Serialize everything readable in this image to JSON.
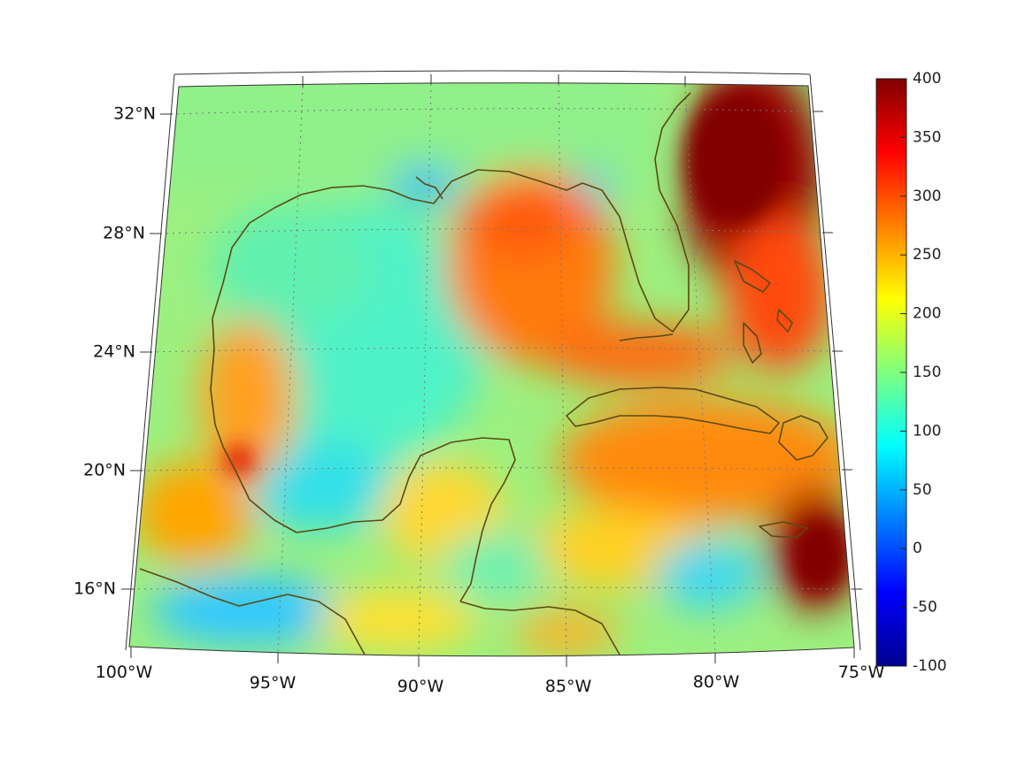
{
  "map": {
    "projection": "conic",
    "lat_labels": [
      "32°N",
      "28°N",
      "24°N",
      "20°N",
      "16°N"
    ],
    "lon_labels": [
      "100°W",
      "95°W",
      "90°W",
      "85°W",
      "80°W",
      "75°W"
    ],
    "lat_range": [
      14,
      33
    ],
    "lon_range": [
      -100,
      -75
    ],
    "grid": true,
    "coastline_color": "#5c4a14"
  },
  "colorbar": {
    "colormap": "jet",
    "ticks": [
      "400",
      "350",
      "300",
      "250",
      "200",
      "150",
      "100",
      "50",
      "0",
      "-50",
      "-100"
    ],
    "range": [
      -100,
      400
    ]
  }
}
